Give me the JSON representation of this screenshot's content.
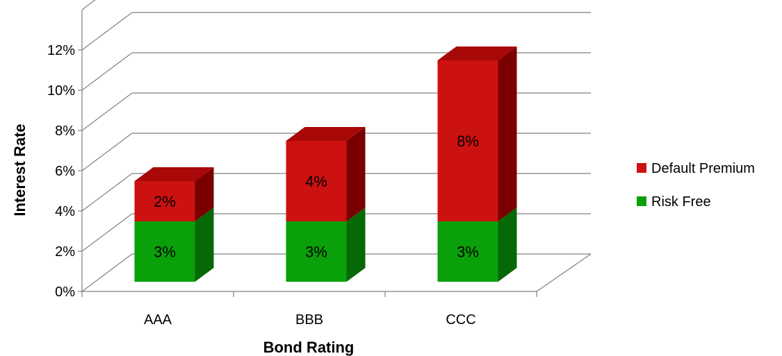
{
  "chart_data": {
    "type": "bar",
    "stacked": true,
    "three_d": true,
    "categories": [
      "AAA",
      "BBB",
      "CCC"
    ],
    "series": [
      {
        "name": "Risk Free",
        "values": [
          3,
          3,
          3
        ],
        "labels": [
          "3%",
          "3%",
          "3%"
        ],
        "color": "#0aa00a",
        "side_color": "#066806",
        "top_color": "#0c8c0c"
      },
      {
        "name": "Default Premium",
        "values": [
          2,
          4,
          8
        ],
        "labels": [
          "2%",
          "4%",
          "8%"
        ],
        "color": "#cc1111",
        "side_color": "#7a0000",
        "top_color": "#a80808"
      }
    ],
    "y_ticks": [
      "0%",
      "2%",
      "4%",
      "6%",
      "8%",
      "10%",
      "12%"
    ],
    "ylim": [
      0,
      12
    ],
    "xlabel": "Bond Rating",
    "ylabel": "Interest Rate",
    "grid": true,
    "legend_position": "right"
  }
}
